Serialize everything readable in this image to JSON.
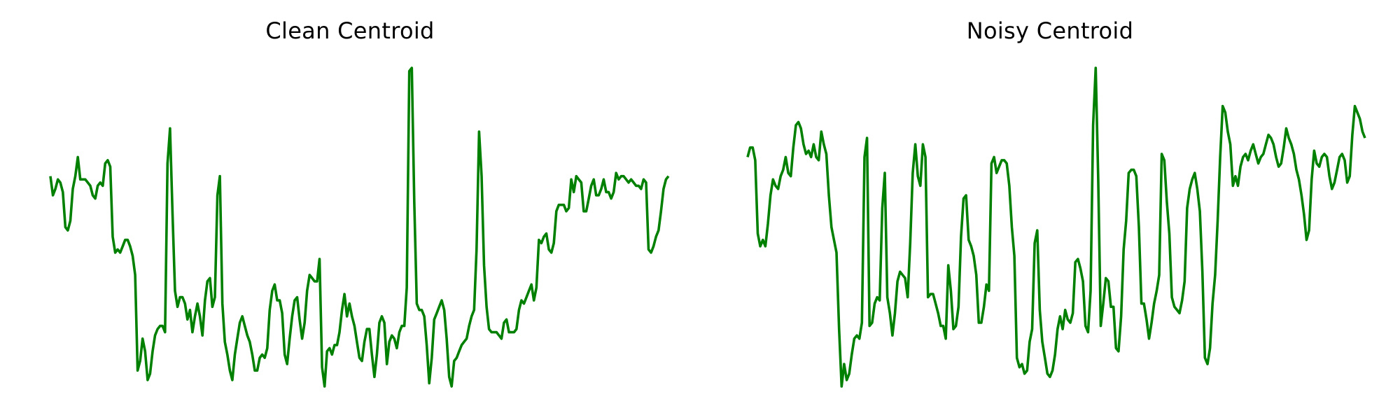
{
  "chart_data": [
    {
      "type": "line",
      "title": "Clean Centroid",
      "color": "#008000",
      "axis_visible": false,
      "grid": false,
      "ylim": [
        0,
        1
      ],
      "x_range": [
        0,
        199
      ],
      "values": [
        0.66,
        0.6,
        0.62,
        0.65,
        0.64,
        0.61,
        0.5,
        0.49,
        0.52,
        0.62,
        0.66,
        0.72,
        0.65,
        0.65,
        0.65,
        0.64,
        0.63,
        0.6,
        0.59,
        0.63,
        0.64,
        0.63,
        0.7,
        0.71,
        0.69,
        0.47,
        0.42,
        0.43,
        0.42,
        0.44,
        0.46,
        0.46,
        0.44,
        0.41,
        0.35,
        0.05,
        0.08,
        0.15,
        0.11,
        0.02,
        0.04,
        0.11,
        0.16,
        0.18,
        0.19,
        0.19,
        0.17,
        0.7,
        0.81,
        0.54,
        0.3,
        0.25,
        0.28,
        0.28,
        0.26,
        0.21,
        0.24,
        0.17,
        0.22,
        0.26,
        0.22,
        0.16,
        0.27,
        0.33,
        0.34,
        0.25,
        0.28,
        0.6,
        0.66,
        0.26,
        0.14,
        0.1,
        0.05,
        0.02,
        0.1,
        0.15,
        0.2,
        0.22,
        0.19,
        0.16,
        0.14,
        0.1,
        0.05,
        0.05,
        0.09,
        0.1,
        0.09,
        0.12,
        0.24,
        0.3,
        0.32,
        0.27,
        0.27,
        0.23,
        0.1,
        0.07,
        0.15,
        0.22,
        0.27,
        0.28,
        0.21,
        0.15,
        0.2,
        0.3,
        0.35,
        0.34,
        0.33,
        0.33,
        0.4,
        0.06,
        0.0,
        0.11,
        0.12,
        0.1,
        0.13,
        0.13,
        0.17,
        0.24,
        0.29,
        0.22,
        0.26,
        0.22,
        0.19,
        0.14,
        0.09,
        0.08,
        0.14,
        0.18,
        0.18,
        0.1,
        0.03,
        0.1,
        0.2,
        0.22,
        0.2,
        0.07,
        0.14,
        0.16,
        0.15,
        0.12,
        0.17,
        0.19,
        0.19,
        0.31,
        0.99,
        1.0,
        0.58,
        0.26,
        0.24,
        0.24,
        0.22,
        0.13,
        0.01,
        0.09,
        0.21,
        0.23,
        0.25,
        0.27,
        0.24,
        0.15,
        0.03,
        0.0,
        0.08,
        0.09,
        0.11,
        0.13,
        0.14,
        0.15,
        0.19,
        0.22,
        0.24,
        0.43,
        0.8,
        0.66,
        0.38,
        0.25,
        0.18,
        0.17,
        0.17,
        0.17,
        0.16,
        0.15,
        0.2,
        0.21,
        0.17,
        0.17,
        0.17,
        0.18,
        0.24,
        0.27,
        0.26,
        0.28,
        0.3,
        0.32,
        0.27,
        0.31,
        0.46,
        0.45,
        0.47,
        0.48,
        0.43,
        0.42,
        0.45,
        0.55,
        0.57,
        0.57,
        0.57,
        0.55,
        0.56,
        0.65,
        0.61,
        0.66,
        0.65,
        0.64,
        0.55,
        0.55,
        0.59,
        0.63,
        0.65,
        0.6,
        0.6,
        0.62,
        0.65,
        0.61,
        0.61,
        0.59,
        0.61,
        0.67,
        0.65,
        0.66,
        0.66,
        0.65,
        0.64,
        0.65,
        0.64,
        0.63,
        0.63,
        0.62,
        0.65,
        0.64,
        0.43,
        0.42,
        0.44,
        0.47,
        0.49,
        0.55,
        0.62,
        0.65,
        0.66
      ]
    },
    {
      "type": "line",
      "title": "Noisy Centroid",
      "color": "#008000",
      "axis_visible": false,
      "grid": false,
      "ylim": [
        0,
        1
      ],
      "x_range": [
        0,
        199
      ],
      "values": [
        0.72,
        0.75,
        0.75,
        0.71,
        0.48,
        0.44,
        0.46,
        0.44,
        0.51,
        0.6,
        0.65,
        0.63,
        0.62,
        0.66,
        0.68,
        0.72,
        0.67,
        0.66,
        0.75,
        0.82,
        0.83,
        0.81,
        0.76,
        0.73,
        0.74,
        0.72,
        0.76,
        0.72,
        0.71,
        0.8,
        0.76,
        0.73,
        0.6,
        0.5,
        0.46,
        0.42,
        0.18,
        0.0,
        0.07,
        0.02,
        0.04,
        0.1,
        0.15,
        0.16,
        0.15,
        0.2,
        0.72,
        0.78,
        0.19,
        0.2,
        0.26,
        0.28,
        0.27,
        0.56,
        0.67,
        0.28,
        0.23,
        0.16,
        0.23,
        0.33,
        0.36,
        0.35,
        0.34,
        0.28,
        0.45,
        0.67,
        0.76,
        0.66,
        0.63,
        0.76,
        0.72,
        0.28,
        0.29,
        0.29,
        0.26,
        0.23,
        0.19,
        0.19,
        0.15,
        0.38,
        0.3,
        0.18,
        0.19,
        0.25,
        0.47,
        0.59,
        0.6,
        0.46,
        0.44,
        0.41,
        0.35,
        0.2,
        0.2,
        0.25,
        0.32,
        0.3,
        0.7,
        0.72,
        0.67,
        0.69,
        0.71,
        0.71,
        0.7,
        0.63,
        0.5,
        0.41,
        0.09,
        0.06,
        0.07,
        0.04,
        0.05,
        0.14,
        0.18,
        0.45,
        0.49,
        0.24,
        0.14,
        0.09,
        0.04,
        0.03,
        0.05,
        0.1,
        0.18,
        0.22,
        0.18,
        0.24,
        0.21,
        0.2,
        0.23,
        0.39,
        0.4,
        0.37,
        0.33,
        0.19,
        0.17,
        0.3,
        0.82,
        1.0,
        0.65,
        0.19,
        0.26,
        0.34,
        0.33,
        0.25,
        0.25,
        0.12,
        0.11,
        0.22,
        0.43,
        0.52,
        0.67,
        0.68,
        0.68,
        0.66,
        0.5,
        0.26,
        0.26,
        0.21,
        0.15,
        0.2,
        0.26,
        0.3,
        0.35,
        0.73,
        0.71,
        0.58,
        0.48,
        0.28,
        0.25,
        0.24,
        0.23,
        0.27,
        0.33,
        0.56,
        0.62,
        0.65,
        0.67,
        0.62,
        0.55,
        0.36,
        0.09,
        0.07,
        0.12,
        0.26,
        0.35,
        0.52,
        0.72,
        0.88,
        0.86,
        0.8,
        0.76,
        0.63,
        0.66,
        0.63,
        0.69,
        0.72,
        0.73,
        0.71,
        0.74,
        0.76,
        0.73,
        0.7,
        0.72,
        0.73,
        0.76,
        0.79,
        0.78,
        0.76,
        0.72,
        0.69,
        0.7,
        0.75,
        0.81,
        0.78,
        0.76,
        0.73,
        0.68,
        0.65,
        0.6,
        0.54,
        0.46,
        0.49,
        0.65,
        0.74,
        0.7,
        0.69,
        0.72,
        0.73,
        0.72,
        0.66,
        0.62,
        0.64,
        0.68,
        0.72,
        0.73,
        0.71,
        0.64,
        0.66,
        0.79,
        0.88,
        0.86,
        0.84,
        0.8,
        0.78
      ]
    }
  ]
}
